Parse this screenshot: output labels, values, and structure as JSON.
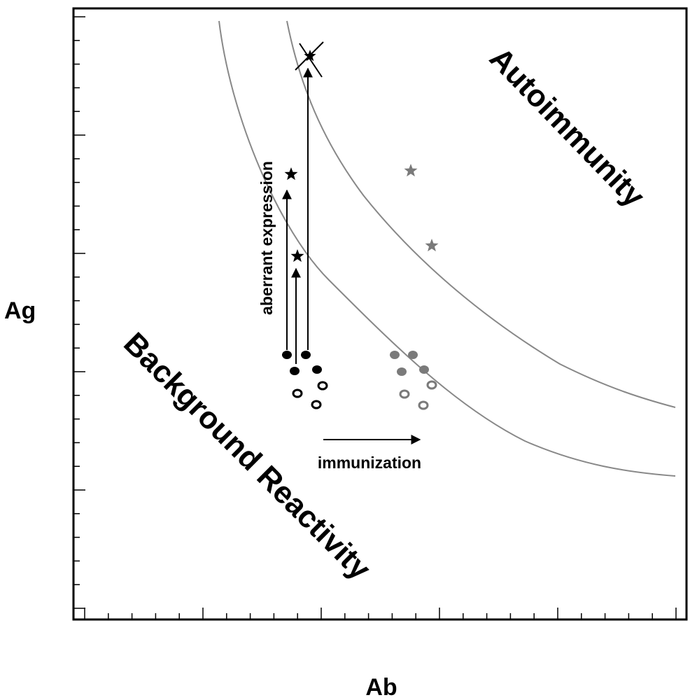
{
  "axes": {
    "x_label": "Ab",
    "y_label": "Ag"
  },
  "regions": {
    "upper_right": "Autoimmunity",
    "lower_left": "Background Reactivity"
  },
  "annotations": {
    "vertical_arrow": "aberrant expression",
    "horizontal_arrow": "immunization"
  },
  "colors": {
    "ink": "#000000",
    "threshold_curve": "#888888",
    "shifted_markers": "#7a7a7a"
  },
  "markers": {
    "filled_circle": "filled-circle-marker",
    "open_circle": "open-circle-marker",
    "star": "star-marker",
    "cross_star": "cross-star-marker"
  }
}
